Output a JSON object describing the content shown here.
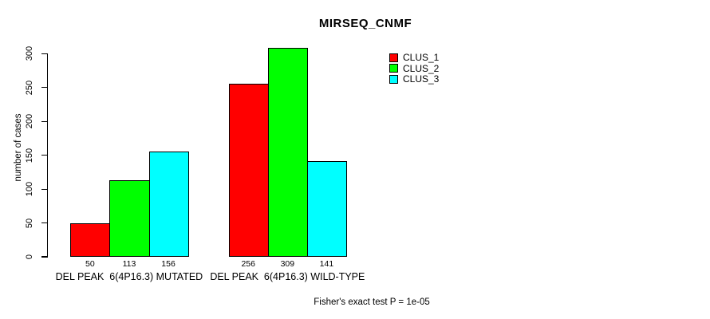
{
  "chart_data": {
    "type": "bar",
    "title": "MIRSEQ_CNMF",
    "xlabel": "",
    "ylabel": "number of cases",
    "ylim": [
      0,
      300
    ],
    "y_ticks": [
      0,
      50,
      100,
      150,
      200,
      250,
      300
    ],
    "grid": false,
    "legend_position": "top-right",
    "bar_value_labels_shown": true,
    "categories": [
      "DEL PEAK  6(4P16.3) MUTATED",
      "DEL PEAK  6(4P16.3) WILD-TYPE"
    ],
    "series": [
      {
        "name": "CLUS_1",
        "color": "#ff0000",
        "values": [
          50,
          256
        ]
      },
      {
        "name": "CLUS_2",
        "color": "#00ff00",
        "values": [
          113,
          309
        ]
      },
      {
        "name": "CLUS_3",
        "color": "#00ffff",
        "values": [
          156,
          141
        ]
      }
    ],
    "annotation": "Fisher's exact test P = 1e-05"
  },
  "colors": {
    "background": "#ffffff",
    "axis": "#000000",
    "text": "#000000",
    "clus_1": "#ff0000",
    "clus_2": "#00ff00",
    "clus_3": "#00ffff"
  }
}
